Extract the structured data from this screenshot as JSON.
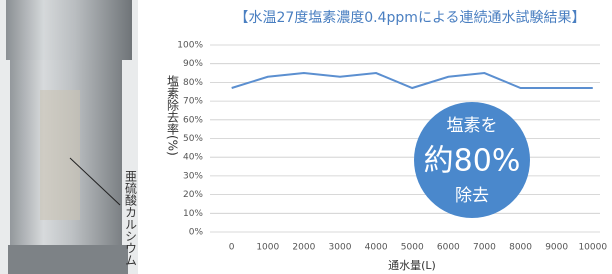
{
  "photo_label": "亜硫酸カルシウム",
  "chart_data": {
    "type": "line",
    "title": "【水温27度塩素濃度0.4ppmによる連続通水試験結果】",
    "x_label": "通水量(L)",
    "y_label": "塩素除去率(%)",
    "x": [
      0,
      1000,
      2000,
      3000,
      4000,
      5000,
      6000,
      7000,
      8000,
      9000,
      10000
    ],
    "series": [
      {
        "color": "#5b8fd0",
        "values": [
          77,
          83,
          85,
          83,
          85,
          77,
          83,
          85,
          77,
          77,
          77
        ]
      }
    ],
    "xlim": [
      -600,
      10200
    ],
    "xticks": [
      0,
      1000,
      2000,
      3000,
      4000,
      5000,
      6000,
      7000,
      8000,
      9000,
      10000
    ],
    "ylim": [
      0,
      100
    ],
    "yticks": [
      {
        "value": 0,
        "label": "0%"
      },
      {
        "value": 10,
        "label": "10%"
      },
      {
        "value": 20,
        "label": "20%"
      },
      {
        "value": 30,
        "label": "30%"
      },
      {
        "value": 40,
        "label": "40%"
      },
      {
        "value": 50,
        "label": "50%"
      },
      {
        "value": 60,
        "label": "60%"
      },
      {
        "value": 70,
        "label": "70%"
      },
      {
        "value": 80,
        "label": "80%"
      },
      {
        "value": 90,
        "label": "90%"
      },
      {
        "value": 100,
        "label": "100%"
      }
    ],
    "grid": true,
    "annotation": [
      "塩素を",
      "約80%",
      "除去"
    ]
  }
}
